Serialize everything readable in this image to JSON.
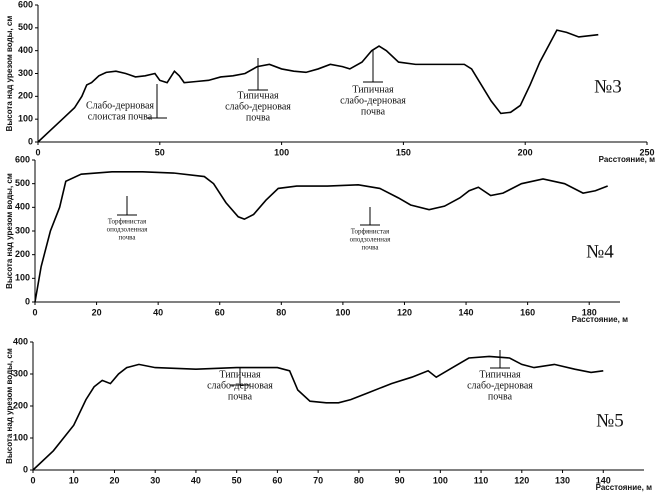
{
  "chart_data": [
    {
      "type": "line",
      "label": "№3",
      "x_label": "Расстояние, м",
      "y_label": "Высота над урезом воды, см",
      "xlim": [
        0,
        250
      ],
      "ylim": [
        0,
        600
      ],
      "xticks": [
        0,
        50,
        100,
        150,
        200,
        250
      ],
      "yticks": [
        0,
        100,
        200,
        300,
        400,
        500,
        600
      ],
      "annotations": [
        [
          "Слабо-дерновая",
          "слоистая почва"
        ],
        [
          "Типичная",
          "слабо-дерновая",
          "почва"
        ],
        [
          "Типичная",
          "слабо-дерновая",
          "почва"
        ]
      ],
      "x": [
        0,
        5,
        10,
        15,
        18,
        20,
        22,
        25,
        28,
        32,
        36,
        40,
        44,
        48,
        50,
        53,
        56,
        58,
        60,
        65,
        70,
        75,
        80,
        85,
        90,
        95,
        100,
        105,
        110,
        115,
        120,
        125,
        128,
        133,
        137,
        140,
        143,
        148,
        155,
        165,
        175,
        178,
        182,
        186,
        190,
        194,
        198,
        202,
        206,
        210,
        213,
        217,
        222,
        230
      ],
      "series": [
        {
          "color": "#000000",
          "values": [
            0,
            50,
            100,
            150,
            200,
            250,
            260,
            290,
            305,
            310,
            300,
            285,
            290,
            300,
            270,
            260,
            310,
            290,
            260,
            265,
            270,
            285,
            290,
            300,
            330,
            340,
            320,
            310,
            305,
            320,
            340,
            330,
            320,
            350,
            400,
            420,
            400,
            350,
            340,
            340,
            340,
            320,
            250,
            180,
            125,
            130,
            160,
            250,
            350,
            430,
            490,
            480,
            460,
            470
          ]
        }
      ]
    },
    {
      "type": "line",
      "label": "№4",
      "x_label": "Расстояние, м",
      "y_label": "Высота над урезом воды, см",
      "xlim": [
        0,
        190
      ],
      "ylim": [
        0,
        600
      ],
      "xticks": [
        0,
        20,
        40,
        60,
        80,
        100,
        120,
        140,
        160,
        180
      ],
      "yticks": [
        0,
        100,
        200,
        300,
        400,
        500,
        600
      ],
      "annotations": [
        [
          "Торфянистая",
          "оподзоленная",
          "почва"
        ],
        [
          "Торфянистая",
          "оподзоленная",
          "почва"
        ]
      ],
      "x": [
        0,
        2,
        5,
        8,
        10,
        15,
        25,
        35,
        45,
        55,
        58,
        62,
        66,
        68,
        71,
        75,
        79,
        85,
        95,
        105,
        112,
        118,
        122,
        128,
        133,
        138,
        141,
        144,
        148,
        152,
        158,
        165,
        172,
        178,
        182,
        186
      ],
      "series": [
        {
          "color": "#000000",
          "values": [
            0,
            150,
            300,
            400,
            510,
            540,
            550,
            550,
            545,
            530,
            500,
            420,
            360,
            350,
            370,
            430,
            480,
            490,
            490,
            495,
            480,
            440,
            410,
            390,
            405,
            440,
            470,
            485,
            450,
            460,
            500,
            520,
            500,
            460,
            470,
            490
          ]
        }
      ]
    },
    {
      "type": "line",
      "label": "№5",
      "x_label": "Расстояние, м",
      "y_label": "Высота над урезом воды, см",
      "xlim": [
        0,
        150
      ],
      "ylim": [
        0,
        400
      ],
      "xticks": [
        0,
        10,
        20,
        30,
        40,
        50,
        60,
        70,
        80,
        90,
        100,
        110,
        120,
        130,
        140
      ],
      "yticks": [
        0,
        100,
        200,
        300,
        400
      ],
      "annotations": [
        [
          "Типичная",
          "слабо-дерновая",
          "почва"
        ],
        [
          "Типичная",
          "слабо-дерновая",
          "почва"
        ]
      ],
      "x": [
        0,
        5,
        10,
        13,
        15,
        17,
        19,
        21,
        23,
        26,
        30,
        40,
        50,
        60,
        63,
        65,
        68,
        72,
        75,
        78,
        82,
        88,
        93,
        97,
        99,
        103,
        107,
        112,
        117,
        120,
        123,
        128,
        133,
        137,
        140
      ],
      "series": [
        {
          "color": "#000000",
          "values": [
            0,
            60,
            140,
            220,
            260,
            280,
            270,
            300,
            320,
            330,
            320,
            315,
            320,
            320,
            310,
            250,
            215,
            210,
            210,
            220,
            240,
            270,
            290,
            310,
            290,
            320,
            350,
            355,
            350,
            330,
            320,
            330,
            315,
            305,
            310
          ]
        }
      ]
    }
  ]
}
